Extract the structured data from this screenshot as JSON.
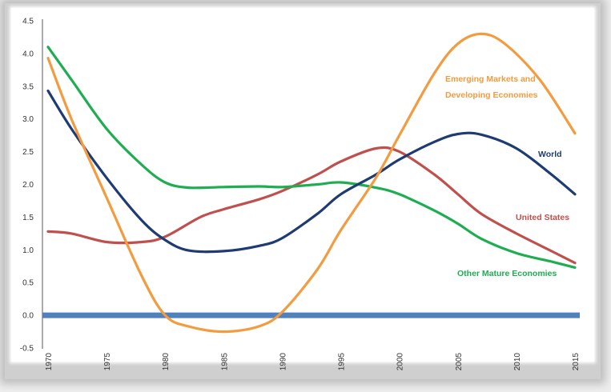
{
  "chart_data": {
    "type": "line",
    "title": "",
    "xlabel": "",
    "ylabel": "",
    "xlim": [
      1970,
      2015
    ],
    "ylim": [
      -0.5,
      4.5
    ],
    "x_ticks": [
      "1970",
      "1975",
      "1980",
      "1985",
      "1990",
      "1995",
      "2000",
      "2005",
      "2010",
      "2015"
    ],
    "y_ticks": [
      "-0.5",
      "0.0",
      "0.5",
      "1.0",
      "1.5",
      "2.0",
      "2.5",
      "3.0",
      "3.5",
      "4.0",
      "4.5"
    ],
    "grid": false,
    "legend": "inline labels",
    "baseline": {
      "y": 0.0,
      "color": "#4f81bd"
    },
    "series": [
      {
        "name": "World",
        "color": "#1f3b73",
        "points": [
          [
            1970,
            3.43
          ],
          [
            1972,
            2.85
          ],
          [
            1975,
            2.1
          ],
          [
            1978,
            1.45
          ],
          [
            1980,
            1.15
          ],
          [
            1982,
            0.99
          ],
          [
            1985,
            0.98
          ],
          [
            1988,
            1.06
          ],
          [
            1990,
            1.18
          ],
          [
            1993,
            1.55
          ],
          [
            1995,
            1.85
          ],
          [
            1998,
            2.15
          ],
          [
            2000,
            2.38
          ],
          [
            2003,
            2.65
          ],
          [
            2005,
            2.77
          ],
          [
            2007,
            2.76
          ],
          [
            2010,
            2.55
          ],
          [
            2013,
            2.15
          ],
          [
            2015,
            1.85
          ]
        ]
      },
      {
        "name": "Emerging Markets and Developing Economies",
        "label_lines": [
          "Emerging Markets and",
          "Developing Economies"
        ],
        "color": "#f39b3f",
        "points": [
          [
            1970,
            3.93
          ],
          [
            1972,
            3.0
          ],
          [
            1975,
            1.8
          ],
          [
            1978,
            0.6
          ],
          [
            1980,
            0.0
          ],
          [
            1982,
            -0.17
          ],
          [
            1985,
            -0.25
          ],
          [
            1988,
            -0.17
          ],
          [
            1990,
            0.05
          ],
          [
            1993,
            0.7
          ],
          [
            1995,
            1.3
          ],
          [
            1998,
            2.1
          ],
          [
            2000,
            2.75
          ],
          [
            2003,
            3.7
          ],
          [
            2005,
            4.15
          ],
          [
            2007,
            4.3
          ],
          [
            2009,
            4.15
          ],
          [
            2012,
            3.6
          ],
          [
            2015,
            2.78
          ]
        ]
      },
      {
        "name": "United States",
        "color": "#c0504d",
        "points": [
          [
            1970,
            1.28
          ],
          [
            1972,
            1.25
          ],
          [
            1975,
            1.12
          ],
          [
            1978,
            1.12
          ],
          [
            1980,
            1.2
          ],
          [
            1983,
            1.5
          ],
          [
            1985,
            1.62
          ],
          [
            1988,
            1.77
          ],
          [
            1990,
            1.9
          ],
          [
            1993,
            2.15
          ],
          [
            1995,
            2.35
          ],
          [
            1998,
            2.55
          ],
          [
            2000,
            2.5
          ],
          [
            2003,
            2.15
          ],
          [
            2005,
            1.85
          ],
          [
            2007,
            1.55
          ],
          [
            2010,
            1.25
          ],
          [
            2013,
            0.98
          ],
          [
            2015,
            0.8
          ]
        ]
      },
      {
        "name": "Other Mature Economies",
        "color": "#1fad52",
        "points": [
          [
            1970,
            4.1
          ],
          [
            1972,
            3.6
          ],
          [
            1975,
            2.85
          ],
          [
            1978,
            2.3
          ],
          [
            1980,
            2.03
          ],
          [
            1982,
            1.95
          ],
          [
            1985,
            1.96
          ],
          [
            1988,
            1.97
          ],
          [
            1990,
            1.96
          ],
          [
            1993,
            2.0
          ],
          [
            1995,
            2.03
          ],
          [
            1998,
            1.95
          ],
          [
            2000,
            1.85
          ],
          [
            2003,
            1.6
          ],
          [
            2005,
            1.4
          ],
          [
            2007,
            1.17
          ],
          [
            2010,
            0.95
          ],
          [
            2013,
            0.82
          ],
          [
            2015,
            0.73
          ]
        ]
      }
    ],
    "labels": {
      "world": "World",
      "em_line1": "Emerging Markets and",
      "em_line2": "Developing Economies",
      "us": "United States",
      "other": "Other Mature Economies"
    }
  }
}
